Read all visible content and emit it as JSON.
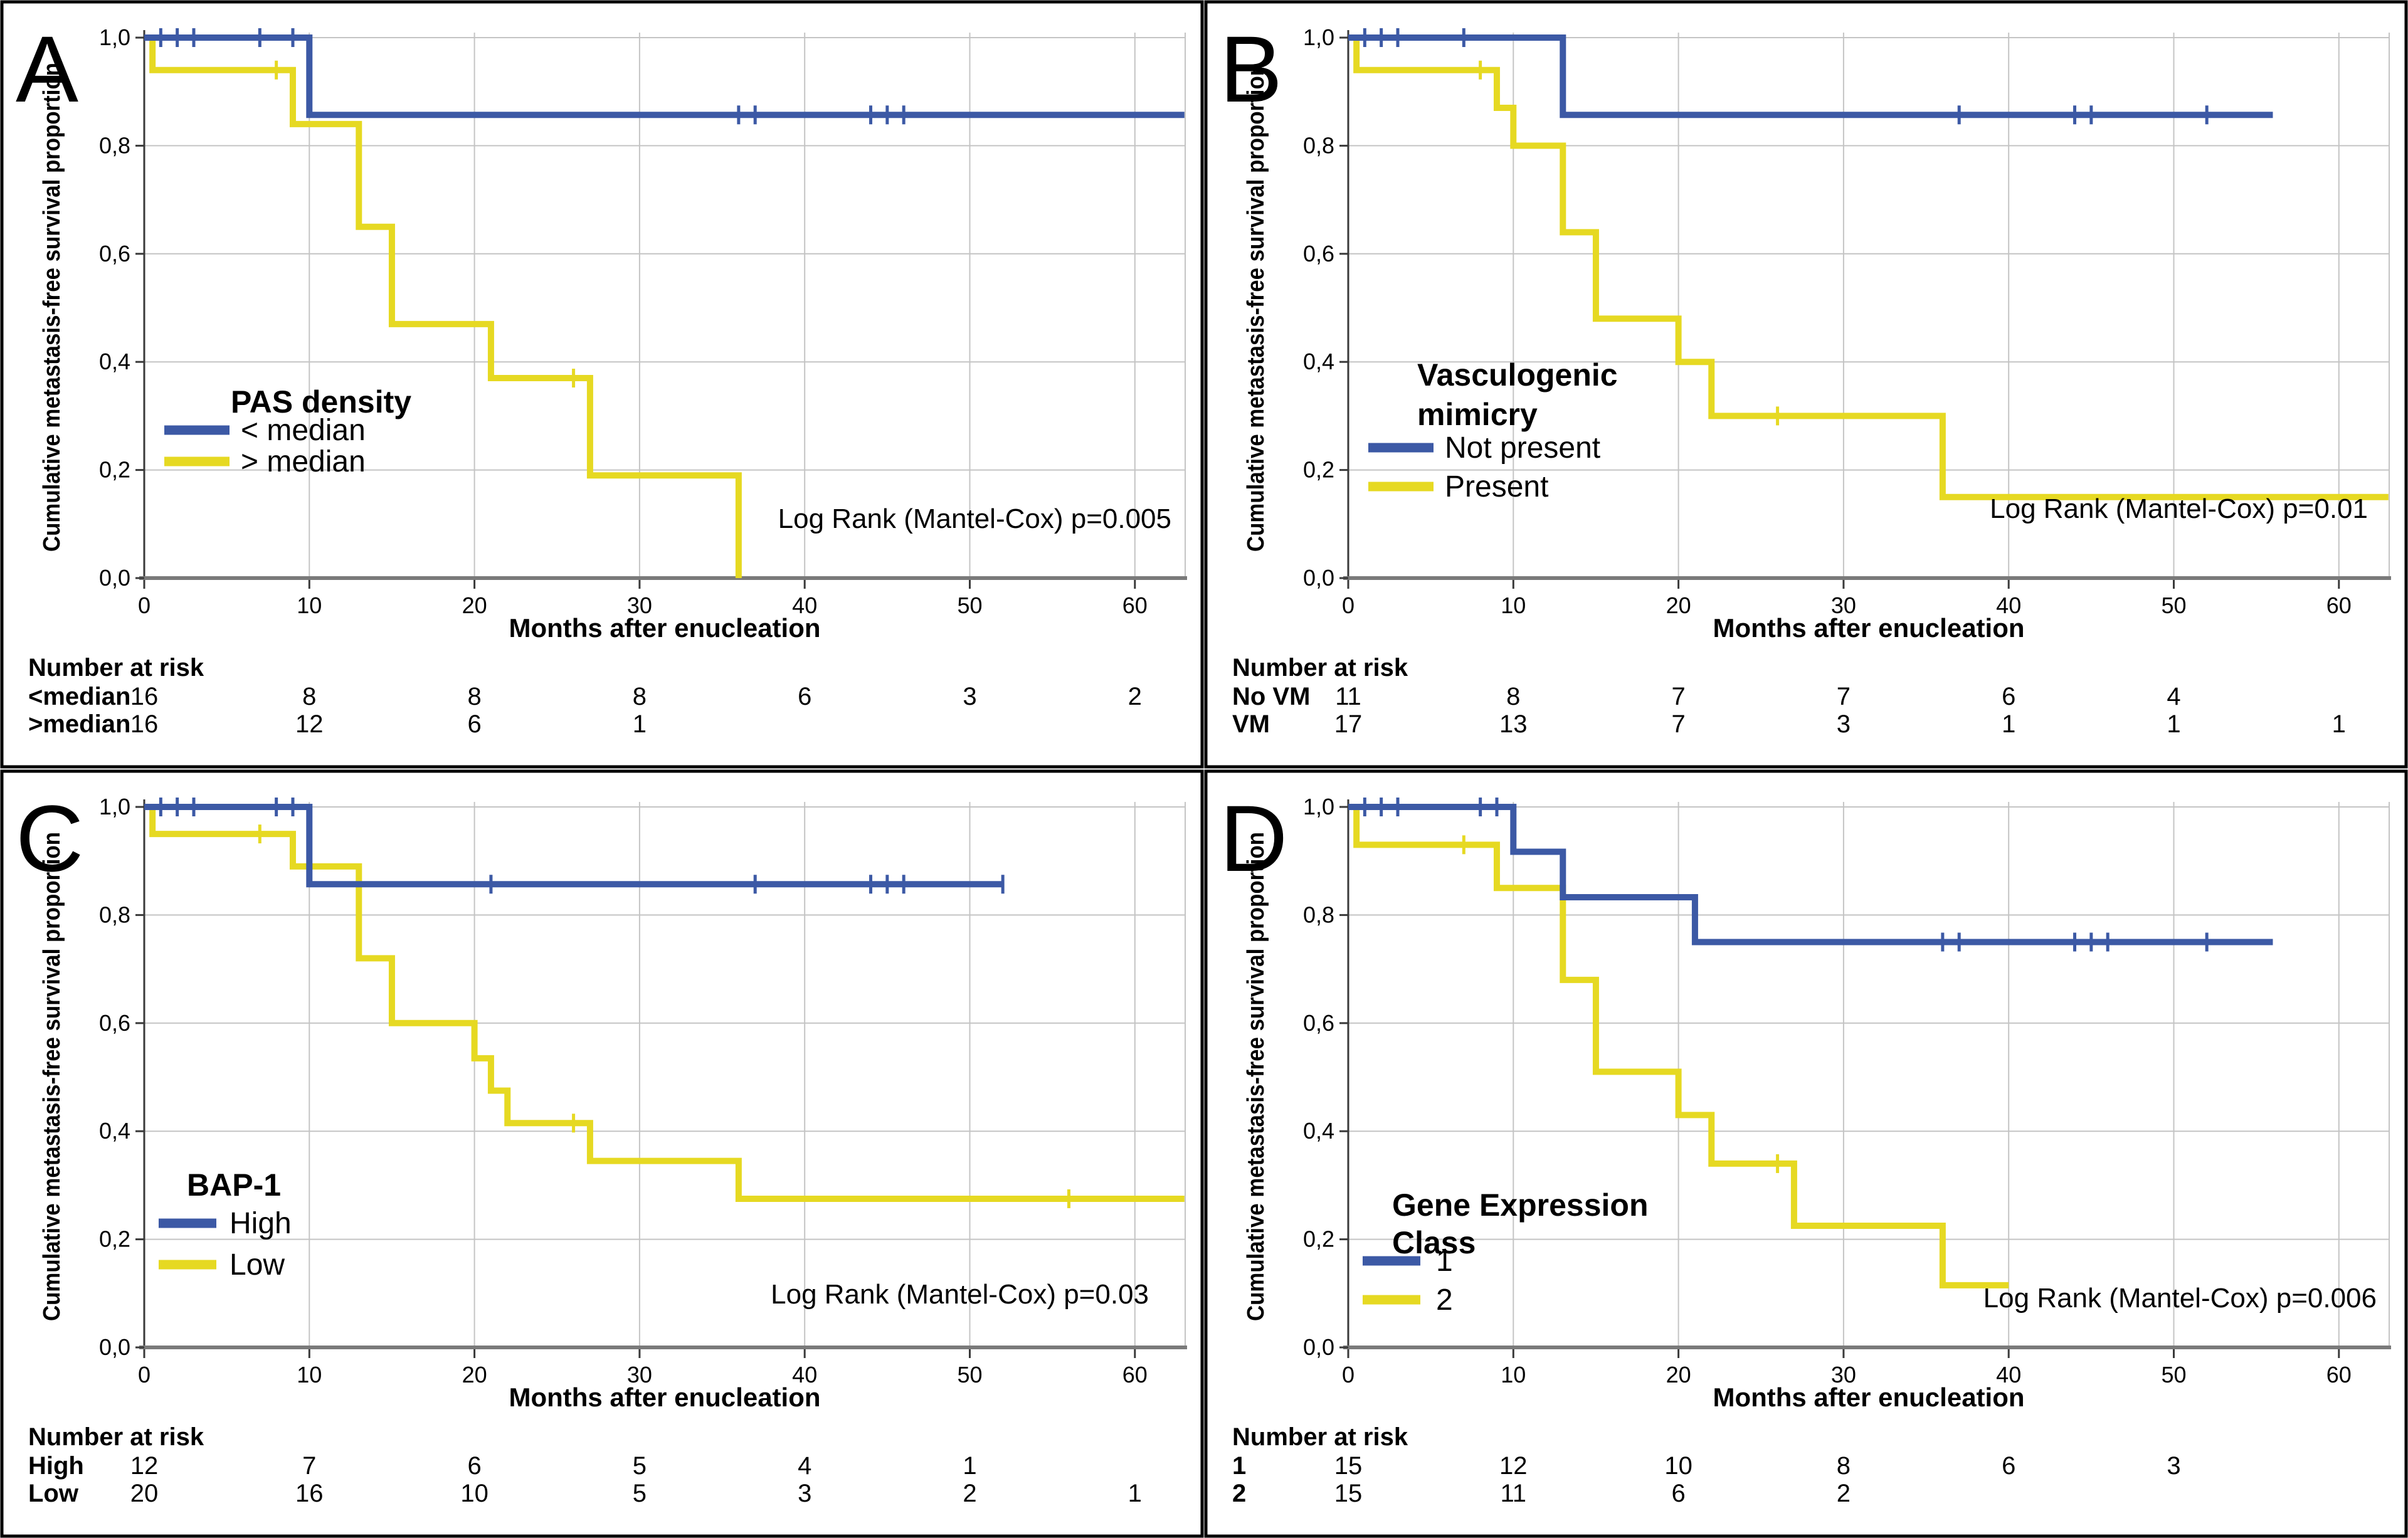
{
  "figure": {
    "background": "#ffffff",
    "colors": {
      "blue": "#3C59A5",
      "yellow": "#E6D922",
      "grid": "#c4c4c4",
      "axis": "#3a3a3a",
      "baseline": "#7a7a7a",
      "text": "#000000"
    },
    "ylabel": "Cumulative metastasis-free survival proportion",
    "xlabel": "Months after enucleation",
    "risk_header": "Number at risk",
    "xticks": [
      0,
      10,
      20,
      30,
      40,
      50,
      60
    ],
    "yticks": [
      {
        "v": 0.0,
        "label": "0,0"
      },
      {
        "v": 0.2,
        "label": "0,2"
      },
      {
        "v": 0.4,
        "label": "0,4"
      },
      {
        "v": 0.6,
        "label": "0,6"
      },
      {
        "v": 0.8,
        "label": "0,8"
      },
      {
        "v": 1.0,
        "label": "1,0"
      }
    ]
  },
  "chart_data": [
    {
      "panel": "A",
      "type": "line",
      "subtype": "kaplan-meier-step",
      "xlabel": "Months after enucleation",
      "ylabel": "Cumulative metastasis-free survival proportion",
      "xlim": [
        0,
        63
      ],
      "ylim": [
        0,
        1
      ],
      "grid": true,
      "legend_position": "center-left",
      "legend_title": [
        "PAS density"
      ],
      "p_label": "Log Rank (Mantel-Cox) p=0.005",
      "series": [
        {
          "name": "< median",
          "color": "#3C59A5",
          "steps": [
            [
              0,
              1.0
            ],
            [
              10,
              0.857
            ]
          ],
          "end_x": 63,
          "censors": [
            [
              1,
              1.0
            ],
            [
              2,
              1.0
            ],
            [
              3,
              1.0
            ],
            [
              7,
              1.0
            ],
            [
              9,
              1.0
            ],
            [
              36,
              0.857
            ],
            [
              37,
              0.857
            ],
            [
              44,
              0.857
            ],
            [
              45,
              0.857
            ],
            [
              46,
              0.857
            ]
          ]
        },
        {
          "name": "> median",
          "color": "#E6D922",
          "steps": [
            [
              0,
              1.0
            ],
            [
              0.5,
              0.94
            ],
            [
              9,
              0.84
            ],
            [
              13,
              0.65
            ],
            [
              15,
              0.47
            ],
            [
              21,
              0.37
            ],
            [
              27,
              0.19
            ],
            [
              36,
              0.0
            ]
          ],
          "end_x": 36,
          "censors": [
            [
              8,
              0.94
            ],
            [
              26,
              0.37
            ]
          ]
        }
      ],
      "risk_table": {
        "header": "Number at risk",
        "months": [
          0,
          10,
          20,
          30,
          40,
          50,
          60
        ],
        "rows": [
          {
            "label": "<median",
            "values": [
              16,
              8,
              8,
              8,
              6,
              3,
              2
            ]
          },
          {
            "label": ">median",
            "values": [
              16,
              12,
              6,
              1
            ]
          }
        ]
      }
    },
    {
      "panel": "B",
      "type": "line",
      "subtype": "kaplan-meier-step",
      "xlabel": "Months after enucleation",
      "ylabel": "Cumulative metastasis-free survival proportion",
      "xlim": [
        0,
        63
      ],
      "ylim": [
        0,
        1
      ],
      "grid": true,
      "legend_position": "center-left",
      "legend_title": [
        "Vasculogenic",
        "mimicry"
      ],
      "p_label": "Log Rank (Mantel-Cox) p=0.01",
      "series": [
        {
          "name": "Not present",
          "color": "#3C59A5",
          "steps": [
            [
              0,
              1.0
            ],
            [
              13,
              0.857
            ]
          ],
          "end_x": 56,
          "censors": [
            [
              1,
              1.0
            ],
            [
              2,
              1.0
            ],
            [
              3,
              1.0
            ],
            [
              7,
              1.0
            ],
            [
              37,
              0.857
            ],
            [
              44,
              0.857
            ],
            [
              45,
              0.857
            ],
            [
              52,
              0.857
            ]
          ]
        },
        {
          "name": "Present",
          "color": "#E6D922",
          "steps": [
            [
              0,
              1.0
            ],
            [
              0.5,
              0.94
            ],
            [
              9,
              0.87
            ],
            [
              10,
              0.8
            ],
            [
              13,
              0.64
            ],
            [
              15,
              0.48
            ],
            [
              20,
              0.4
            ],
            [
              22,
              0.3
            ],
            [
              36,
              0.15
            ]
          ],
          "end_x": 63,
          "censors": [
            [
              8,
              0.94
            ],
            [
              26,
              0.3
            ]
          ]
        }
      ],
      "risk_table": {
        "header": "Number at risk",
        "months": [
          0,
          10,
          20,
          30,
          40,
          50,
          60
        ],
        "rows": [
          {
            "label": "No VM",
            "values": [
              11,
              8,
              7,
              7,
              6,
              4
            ]
          },
          {
            "label": "VM",
            "values": [
              17,
              13,
              7,
              3,
              1,
              1,
              1
            ]
          }
        ]
      }
    },
    {
      "panel": "C",
      "type": "line",
      "subtype": "kaplan-meier-step",
      "xlabel": "Months after enucleation",
      "ylabel": "Cumulative metastasis-free survival proportion",
      "xlim": [
        0,
        63
      ],
      "ylim": [
        0,
        1
      ],
      "grid": true,
      "legend_position": "center-left",
      "legend_title": [
        "BAP-1"
      ],
      "p_label": "Log Rank (Mantel-Cox) p=0.03",
      "series": [
        {
          "name": "High",
          "color": "#3C59A5",
          "steps": [
            [
              0,
              1.0
            ],
            [
              10,
              0.857
            ]
          ],
          "end_x": 52,
          "censors": [
            [
              1,
              1.0
            ],
            [
              2,
              1.0
            ],
            [
              3,
              1.0
            ],
            [
              8,
              1.0
            ],
            [
              9,
              1.0
            ],
            [
              21,
              0.857
            ],
            [
              37,
              0.857
            ],
            [
              44,
              0.857
            ],
            [
              45,
              0.857
            ],
            [
              46,
              0.857
            ],
            [
              52,
              0.857
            ]
          ]
        },
        {
          "name": "Low",
          "color": "#E6D922",
          "steps": [
            [
              0,
              1.0
            ],
            [
              0.5,
              0.95
            ],
            [
              9,
              0.89
            ],
            [
              13,
              0.72
            ],
            [
              15,
              0.6
            ],
            [
              20,
              0.535
            ],
            [
              21,
              0.475
            ],
            [
              22,
              0.415
            ],
            [
              27,
              0.345
            ],
            [
              36,
              0.275
            ]
          ],
          "end_x": 63,
          "censors": [
            [
              7,
              0.95
            ],
            [
              26,
              0.415
            ],
            [
              56,
              0.275
            ]
          ]
        }
      ],
      "risk_table": {
        "header": "Number at risk",
        "months": [
          0,
          10,
          20,
          30,
          40,
          50,
          60
        ],
        "rows": [
          {
            "label": "High",
            "values": [
              12,
              7,
              6,
              5,
              4,
              1
            ]
          },
          {
            "label": "Low",
            "values": [
              20,
              16,
              10,
              5,
              3,
              2,
              1
            ]
          }
        ]
      }
    },
    {
      "panel": "D",
      "type": "line",
      "subtype": "kaplan-meier-step",
      "xlabel": "Months after enucleation",
      "ylabel": "Cumulative metastasis-free survival proportion",
      "xlim": [
        0,
        63
      ],
      "ylim": [
        0,
        1
      ],
      "grid": true,
      "legend_position": "center-left",
      "legend_title": [
        "Gene Expression",
        "Class"
      ],
      "p_label": "Log Rank (Mantel-Cox) p=0.006",
      "series": [
        {
          "name": "1",
          "color": "#3C59A5",
          "steps": [
            [
              0,
              1.0
            ],
            [
              10,
              0.917
            ],
            [
              13,
              0.833
            ],
            [
              21,
              0.75
            ]
          ],
          "end_x": 56,
          "censors": [
            [
              1,
              1.0
            ],
            [
              2,
              1.0
            ],
            [
              3,
              1.0
            ],
            [
              8,
              1.0
            ],
            [
              9,
              1.0
            ],
            [
              36,
              0.75
            ],
            [
              37,
              0.75
            ],
            [
              44,
              0.75
            ],
            [
              45,
              0.75
            ],
            [
              46,
              0.75
            ],
            [
              52,
              0.75
            ]
          ]
        },
        {
          "name": "2",
          "color": "#E6D922",
          "steps": [
            [
              0,
              1.0
            ],
            [
              0.5,
              0.93
            ],
            [
              9,
              0.85
            ],
            [
              13,
              0.68
            ],
            [
              15,
              0.51
            ],
            [
              20,
              0.43
            ],
            [
              22,
              0.34
            ],
            [
              27,
              0.225
            ],
            [
              36,
              0.115
            ]
          ],
          "end_x": 40,
          "censors": [
            [
              7,
              0.93
            ],
            [
              26,
              0.34
            ]
          ]
        }
      ],
      "risk_table": {
        "header": "Number at risk",
        "months": [
          0,
          10,
          20,
          30,
          40,
          50,
          60
        ],
        "rows": [
          {
            "label": "1",
            "values": [
              15,
              12,
              10,
              8,
              6,
              3
            ]
          },
          {
            "label": "2",
            "values": [
              15,
              11,
              6,
              2
            ]
          }
        ]
      }
    }
  ]
}
